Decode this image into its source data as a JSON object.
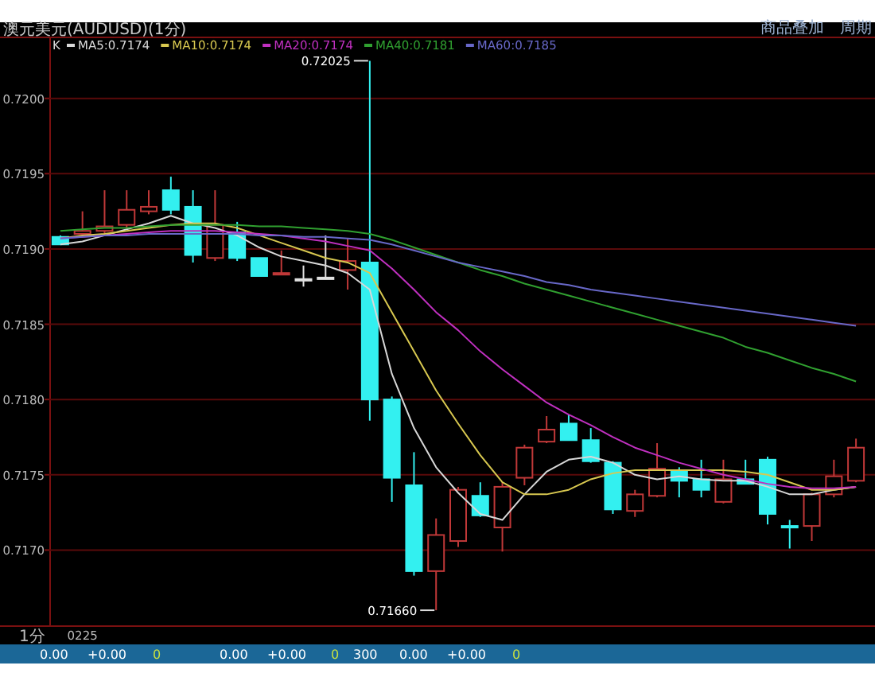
{
  "chart_data": {
    "type": "candlestick",
    "title": "澳元美元(AUDUSD)(1分)",
    "categories": [
      null,
      "0225",
      null,
      null,
      null,
      null,
      null,
      null,
      null,
      null,
      null,
      null,
      null,
      null,
      null,
      null,
      null,
      null,
      null,
      null,
      null,
      null,
      null,
      null,
      null,
      null,
      null,
      null,
      null,
      null,
      null,
      null,
      null,
      null,
      null,
      null,
      null
    ],
    "ylim": [
      0.7165,
      0.7204
    ],
    "yticks": [
      {
        "value": 0.717,
        "label": "0.7170"
      },
      0.7175,
      {
        "value": 0.718,
        "label": "0.7180"
      },
      0.7185,
      {
        "value": 0.719,
        "label": "0.7190"
      },
      0.7195,
      {
        "value": 0.72,
        "label": "0.7200"
      }
    ],
    "grid": "y",
    "legend": "top left",
    "marker": "none",
    "series": [
      {
        "ohlc": [
          [
            0.71908,
            0.71909,
            0.71903,
            0.71903
          ],
          [
            0.7191,
            0.71925,
            0.71908,
            0.71912
          ],
          [
            0.71912,
            0.71939,
            0.7191,
            0.71915
          ],
          [
            0.71916,
            0.71939,
            0.71914,
            0.71926
          ],
          [
            0.71925,
            0.71939,
            0.71923,
            0.71928
          ],
          [
            0.71939,
            0.71948,
            0.71923,
            0.71926
          ],
          [
            0.71928,
            0.71939,
            0.71891,
            0.71896
          ],
          [
            0.71894,
            0.71939,
            0.71892,
            0.71916
          ],
          [
            0.71911,
            0.71918,
            0.71892,
            0.71894
          ],
          [
            0.71894,
            0.71894,
            0.71882,
            0.71882
          ],
          [
            0.71883,
            0.71899,
            0.71883,
            0.71884
          ],
          [
            0.7188,
            0.71889,
            0.71875,
            0.7188
          ],
          [
            0.71881,
            0.71909,
            0.7188,
            0.71881
          ],
          [
            0.71886,
            0.71907,
            0.71873,
            0.71892
          ],
          [
            0.71891,
            0.72025,
            0.71786,
            0.718
          ],
          [
            0.718,
            0.71802,
            0.71732,
            0.71748
          ],
          [
            0.71743,
            0.71765,
            0.71683,
            0.71686
          ],
          [
            0.71686,
            0.71721,
            0.7166,
            0.7171
          ],
          [
            0.71706,
            0.71742,
            0.71702,
            0.7174
          ],
          [
            0.71736,
            0.71745,
            0.71722,
            0.71723
          ],
          [
            0.71715,
            0.71745,
            0.71699,
            0.71742
          ],
          [
            0.71748,
            0.7177,
            0.71743,
            0.71768
          ],
          [
            0.71772,
            0.71789,
            0.71771,
            0.7178
          ],
          [
            0.71784,
            0.7179,
            0.71773,
            0.71773
          ],
          [
            0.71773,
            0.71781,
            0.71758,
            0.71759
          ],
          [
            0.71758,
            0.71759,
            0.71724,
            0.71727
          ],
          [
            0.71726,
            0.7174,
            0.71722,
            0.71737
          ],
          [
            0.71736,
            0.71771,
            0.71735,
            0.71754
          ],
          [
            0.71753,
            0.71755,
            0.71735,
            0.71746
          ],
          [
            0.71747,
            0.7176,
            0.71735,
            0.7174
          ],
          [
            0.71732,
            0.7176,
            0.71731,
            0.71747
          ],
          [
            0.71747,
            0.7176,
            0.71744,
            0.71744
          ],
          [
            0.7176,
            0.71762,
            0.71717,
            0.71724
          ],
          [
            0.71716,
            0.7172,
            0.71701,
            0.71715
          ],
          [
            0.71716,
            0.71738,
            0.71706,
            0.71737
          ],
          [
            0.71737,
            0.7176,
            0.71735,
            0.71749
          ],
          [
            0.71746,
            0.71774,
            0.71745,
            0.71768
          ]
        ],
        "colors": [
          "#33f0f0",
          "#c03838",
          "#c03838",
          "#c03838",
          "#c03838",
          "#33f0f0",
          "#33f0f0",
          "#c03838",
          "#33f0f0",
          "#33f0f0",
          "#c03838",
          "#e0e0e0",
          "#e0e0e0",
          "#c03838",
          "#33f0f0",
          "#33f0f0",
          "#33f0f0",
          "#c03838",
          "#c03838",
          "#33f0f0",
          "#c03838",
          "#c03838",
          "#c03838",
          "#33f0f0",
          "#33f0f0",
          "#33f0f0",
          "#c03838",
          "#c03838",
          "#33f0f0",
          "#33f0f0",
          "#c03838",
          "#33f0f0",
          "#33f0f0",
          "#33f0f0",
          "#c03838",
          "#c03838",
          "#c03838"
        ]
      },
      {
        "name": "MA5:0.7174",
        "type": "line",
        "color": "#d8d8d8",
        "values": [
          0.71903,
          0.71905,
          0.71909,
          0.71913,
          0.71917,
          0.71922,
          0.71917,
          0.71914,
          0.71909,
          0.71901,
          0.71895,
          0.71892,
          0.71889,
          0.71884,
          0.71873,
          0.71817,
          0.71781,
          0.71755,
          0.71738,
          0.71724,
          0.7172,
          0.71737,
          0.71752,
          0.7176,
          0.71762,
          0.71758,
          0.7175,
          0.71747,
          0.71749,
          0.71747,
          0.71746,
          0.71746,
          0.71742,
          0.71737,
          0.71737,
          0.7174,
          0.71742
        ]
      },
      {
        "name": "MA10:0.7174",
        "type": "line",
        "color": "#d8c850",
        "values": [
          0.71907,
          0.71909,
          0.7191,
          0.71912,
          0.71914,
          0.71916,
          0.71917,
          0.71917,
          0.71914,
          0.71909,
          0.71904,
          0.71899,
          0.71894,
          0.71891,
          0.71884,
          0.71858,
          0.71832,
          0.71806,
          0.71784,
          0.71763,
          0.71745,
          0.71737,
          0.71737,
          0.7174,
          0.71747,
          0.71751,
          0.71753,
          0.71753,
          0.71753,
          0.71753,
          0.71753,
          0.71752,
          0.7175,
          0.71745,
          0.7174,
          0.7174,
          0.71742
        ]
      },
      {
        "name": "MA20:0.7174",
        "type": "line",
        "color": "#c030c0",
        "values": [
          0.71907,
          0.71908,
          0.71909,
          0.7191,
          0.71911,
          0.71912,
          0.71912,
          0.71912,
          0.71911,
          0.7191,
          0.71909,
          0.71907,
          0.71905,
          0.71902,
          0.71899,
          0.71887,
          0.71873,
          0.71858,
          0.71846,
          0.71832,
          0.7182,
          0.71809,
          0.71798,
          0.7179,
          0.71783,
          0.71775,
          0.71768,
          0.71763,
          0.71758,
          0.71754,
          0.7175,
          0.71747,
          0.71744,
          0.71742,
          0.71741,
          0.71741,
          0.71742
        ]
      },
      {
        "name": "MA40:0.7181",
        "type": "line",
        "color": "#30a030",
        "values": [
          0.71912,
          0.71913,
          0.71914,
          0.71914,
          0.71915,
          0.71916,
          0.71916,
          0.71916,
          0.71916,
          0.71915,
          0.71915,
          0.71914,
          0.71913,
          0.71912,
          0.7191,
          0.71906,
          0.71901,
          0.71896,
          0.71891,
          0.71886,
          0.71882,
          0.71877,
          0.71873,
          0.71869,
          0.71865,
          0.71861,
          0.71857,
          0.71853,
          0.71849,
          0.71845,
          0.71841,
          0.71835,
          0.71831,
          0.71826,
          0.71821,
          0.71817,
          0.71812
        ]
      },
      {
        "name": "MA60:0.7185",
        "type": "line",
        "color": "#6868c8",
        "values": [
          0.71907,
          0.71908,
          0.71909,
          0.71909,
          0.7191,
          0.7191,
          0.7191,
          0.7191,
          0.7191,
          0.71909,
          0.71909,
          0.71908,
          0.71908,
          0.71907,
          0.71906,
          0.71903,
          0.71899,
          0.71895,
          0.71891,
          0.71888,
          0.71885,
          0.71882,
          0.71878,
          0.71876,
          0.71873,
          0.71871,
          0.71869,
          0.71867,
          0.71865,
          0.71863,
          0.71861,
          0.71859,
          0.71857,
          0.71855,
          0.71853,
          0.71851,
          0.71849
        ]
      }
    ],
    "annotations": [
      "K",
      "0.72025",
      "0.71660",
      "商品叠加",
      "周期",
      "1分",
      "0.00",
      "+0.00",
      "0",
      "0.00",
      "+0.00",
      "0",
      "300",
      "0.00",
      "+0.00",
      "0"
    ]
  }
}
